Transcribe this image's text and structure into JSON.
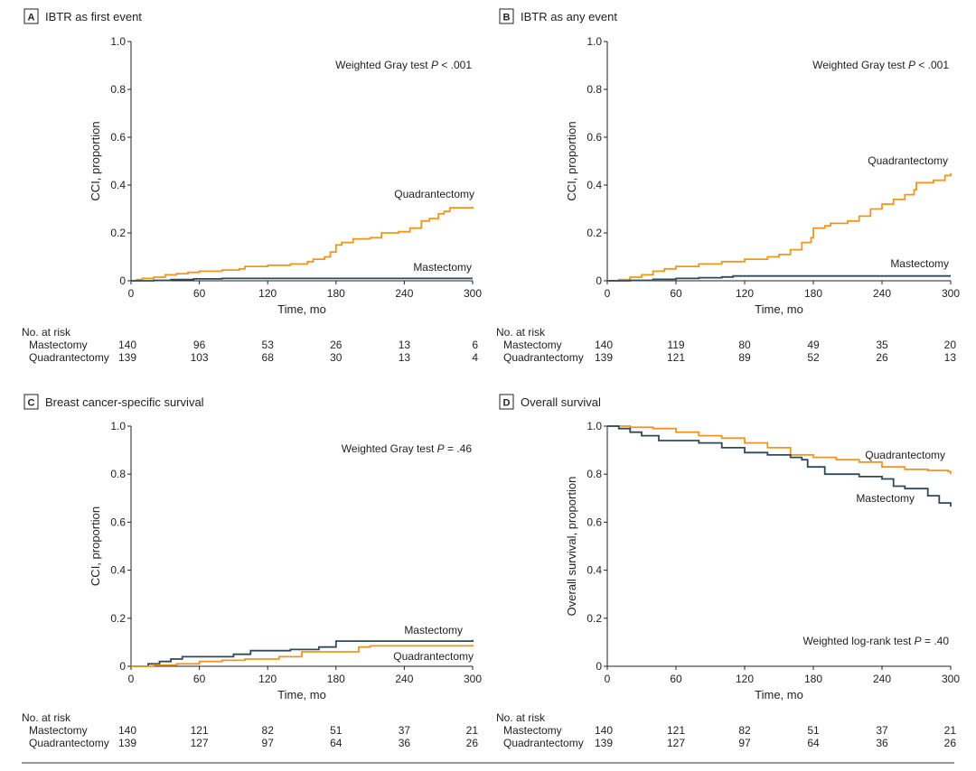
{
  "colors": {
    "mastectomy": "#2e4a5a",
    "quadrantectomy": "#f0961e",
    "axis": "#222222",
    "rule": "#333333"
  },
  "risk_header": "No. at risk",
  "chart_data": [
    {
      "panel_letter": "A",
      "title": "IBTR as first event",
      "type": "line",
      "xlabel": "Time, mo",
      "ylabel": "CCI, proportion",
      "xlim": [
        0,
        300
      ],
      "ylim": [
        0,
        1.0
      ],
      "xticks": [
        0,
        60,
        120,
        180,
        240,
        300
      ],
      "yticks": [
        "0",
        "0.2",
        "0.4",
        "0.6",
        "0.8",
        "1.0"
      ],
      "grid": false,
      "annotation": {
        "prefix": "Weighted Gray test ",
        "p": "P",
        "suffix": " < .001"
      },
      "series": [
        {
          "name": "Quadrantectomy",
          "color": "#f0961e",
          "x": [
            0,
            5,
            10,
            20,
            30,
            40,
            50,
            60,
            80,
            95,
            100,
            120,
            140,
            155,
            160,
            170,
            175,
            180,
            185,
            195,
            210,
            220,
            235,
            245,
            255,
            262,
            270,
            275,
            280,
            300
          ],
          "y": [
            0,
            0.005,
            0.01,
            0.015,
            0.025,
            0.03,
            0.035,
            0.04,
            0.045,
            0.05,
            0.06,
            0.065,
            0.07,
            0.08,
            0.09,
            0.1,
            0.12,
            0.15,
            0.16,
            0.175,
            0.18,
            0.2,
            0.205,
            0.22,
            0.25,
            0.26,
            0.28,
            0.29,
            0.305,
            0.31
          ]
        },
        {
          "name": "Mastectomy",
          "color": "#2e4a5a",
          "x": [
            0,
            20,
            35,
            55,
            80,
            300
          ],
          "y": [
            0,
            0.002,
            0.005,
            0.008,
            0.01,
            0.01
          ]
        }
      ],
      "risk_table": [
        {
          "label": "Mastectomy",
          "values": [
            "140",
            "96",
            "53",
            "26",
            "13",
            "6"
          ]
        },
        {
          "label": "Quadrantectomy",
          "values": [
            "139",
            "103",
            "68",
            "30",
            "13",
            "4"
          ]
        }
      ]
    },
    {
      "panel_letter": "B",
      "title": "IBTR as any event",
      "type": "line",
      "xlabel": "Time, mo",
      "ylabel": "CCI, proportion",
      "xlim": [
        0,
        300
      ],
      "ylim": [
        0,
        1.0
      ],
      "xticks": [
        0,
        60,
        120,
        180,
        240,
        300
      ],
      "yticks": [
        "0",
        "0.2",
        "0.4",
        "0.6",
        "0.8",
        "1.0"
      ],
      "grid": false,
      "annotation": {
        "prefix": "Weighted Gray test ",
        "p": "P",
        "suffix": " < .001"
      },
      "series": [
        {
          "name": "Quadrantectomy",
          "color": "#f0961e",
          "x": [
            0,
            10,
            20,
            30,
            40,
            50,
            60,
            80,
            100,
            120,
            140,
            150,
            160,
            170,
            178,
            180,
            190,
            195,
            210,
            220,
            230,
            240,
            250,
            260,
            268,
            270,
            285,
            295,
            300
          ],
          "y": [
            0,
            0.005,
            0.015,
            0.025,
            0.04,
            0.05,
            0.06,
            0.07,
            0.08,
            0.09,
            0.1,
            0.11,
            0.13,
            0.16,
            0.18,
            0.22,
            0.23,
            0.24,
            0.25,
            0.27,
            0.3,
            0.32,
            0.34,
            0.36,
            0.38,
            0.41,
            0.42,
            0.44,
            0.45
          ]
        },
        {
          "name": "Mastectomy",
          "color": "#2e4a5a",
          "x": [
            0,
            20,
            40,
            60,
            80,
            100,
            110,
            300
          ],
          "y": [
            0,
            0.002,
            0.006,
            0.01,
            0.013,
            0.016,
            0.02,
            0.02
          ]
        }
      ],
      "risk_table": [
        {
          "label": "Mastectomy",
          "values": [
            "140",
            "119",
            "80",
            "49",
            "35",
            "20"
          ]
        },
        {
          "label": "Quadrantectomy",
          "values": [
            "139",
            "121",
            "89",
            "52",
            "26",
            "13"
          ]
        }
      ]
    },
    {
      "panel_letter": "C",
      "title": "Breast cancer-specific survival",
      "type": "line",
      "xlabel": "Time, mo",
      "ylabel": "CCI, proportion",
      "xlim": [
        0,
        300
      ],
      "ylim": [
        0,
        1.0
      ],
      "xticks": [
        0,
        60,
        120,
        180,
        240,
        300
      ],
      "yticks": [
        "0",
        "0.2",
        "0.4",
        "0.6",
        "0.8",
        "1.0"
      ],
      "grid": false,
      "annotation": {
        "prefix": "Weighted Gray test ",
        "p": "P",
        "suffix": " = .46"
      },
      "series": [
        {
          "name": "Mastectomy",
          "color": "#2e4a5a",
          "x": [
            0,
            15,
            25,
            35,
            45,
            90,
            105,
            140,
            165,
            180,
            300
          ],
          "y": [
            0,
            0.01,
            0.02,
            0.03,
            0.04,
            0.05,
            0.065,
            0.07,
            0.08,
            0.105,
            0.11
          ]
        },
        {
          "name": "Quadrantectomy",
          "color": "#f0961e",
          "x": [
            0,
            20,
            40,
            60,
            80,
            100,
            130,
            150,
            200,
            210,
            300
          ],
          "y": [
            0,
            0.005,
            0.01,
            0.02,
            0.025,
            0.03,
            0.04,
            0.06,
            0.08,
            0.085,
            0.09
          ]
        }
      ],
      "risk_table": [
        {
          "label": "Mastectomy",
          "values": [
            "140",
            "121",
            "82",
            "51",
            "37",
            "21"
          ]
        },
        {
          "label": "Quadrantectomy",
          "values": [
            "139",
            "127",
            "97",
            "64",
            "36",
            "26"
          ]
        }
      ]
    },
    {
      "panel_letter": "D",
      "title": "Overall survival",
      "type": "line",
      "xlabel": "Time, mo",
      "ylabel": "Overall survival, proportion",
      "xlim": [
        0,
        300
      ],
      "ylim": [
        0,
        1.0
      ],
      "xticks": [
        0,
        60,
        120,
        180,
        240,
        300
      ],
      "yticks": [
        "0",
        "0.2",
        "0.4",
        "0.6",
        "0.8",
        "1.0"
      ],
      "grid": false,
      "annotation": {
        "prefix": "Weighted log-rank test ",
        "p": "P",
        "suffix": " = .40"
      },
      "series": [
        {
          "name": "Quadrantectomy",
          "color": "#f0961e",
          "x": [
            0,
            20,
            40,
            60,
            80,
            100,
            120,
            140,
            160,
            180,
            200,
            220,
            240,
            260,
            280,
            298,
            300
          ],
          "y": [
            1.0,
            0.995,
            0.99,
            0.975,
            0.96,
            0.95,
            0.93,
            0.91,
            0.88,
            0.87,
            0.86,
            0.85,
            0.83,
            0.82,
            0.815,
            0.81,
            0.8
          ]
        },
        {
          "name": "Mastectomy",
          "color": "#2e4a5a",
          "x": [
            0,
            10,
            20,
            30,
            45,
            80,
            100,
            120,
            140,
            160,
            170,
            175,
            190,
            220,
            240,
            250,
            260,
            280,
            290,
            300
          ],
          "y": [
            1.0,
            0.99,
            0.975,
            0.96,
            0.94,
            0.93,
            0.91,
            0.89,
            0.88,
            0.87,
            0.86,
            0.83,
            0.8,
            0.79,
            0.78,
            0.75,
            0.74,
            0.71,
            0.68,
            0.665
          ]
        }
      ],
      "risk_table": [
        {
          "label": "Mastectomy",
          "values": [
            "140",
            "121",
            "82",
            "51",
            "37",
            "21"
          ]
        },
        {
          "label": "Quadrantectomy",
          "values": [
            "139",
            "127",
            "97",
            "64",
            "36",
            "26"
          ]
        }
      ]
    }
  ]
}
